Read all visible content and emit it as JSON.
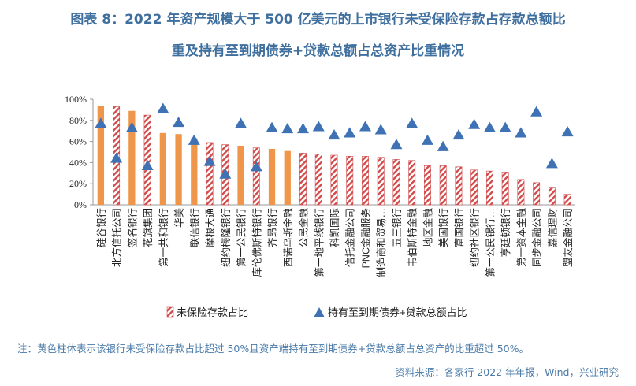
{
  "title_line1": "图表 8：2022 年资产规模大于 500 亿美元的上市银行未受保险存款占存款总额比",
  "title_line2": "重及持有至到期债券+贷款总额占总资产比重情况",
  "note": "注：黄色柱体表示该银行未受保险存款占比超过 50%且资产端持有至到期债券+贷款总额占总资产的比重超过 50%。",
  "source": "资料来源：各家行 2022 年年报，Wind，兴业研究",
  "colors": {
    "highlight_bar": "#f0964a",
    "hatch_stripe": "#d24a4a",
    "triangle": "#3e72b5",
    "axis": "#999999",
    "text": "#222222"
  },
  "chart_data": {
    "type": "bar",
    "ylim": [
      0,
      100
    ],
    "yticks": [
      "0%",
      "20%",
      "40%",
      "60%",
      "80%",
      "100%"
    ],
    "categories": [
      "硅谷银行",
      "北方信托公司",
      "签名银行",
      "花旗集团",
      "第一共和银行",
      "华美",
      "联信银行",
      "摩根大通",
      "纽约梅隆银行",
      "第一公民银行",
      "库伦佛斯特银行",
      "齐昂银行",
      "西诺乌斯金融",
      "公民金融",
      "第一地平线银行",
      "科凯国际",
      "信托金融公司",
      "PNC金融服务",
      "制造商和贸易…",
      "五三银行",
      "韦伯斯特金融",
      "地区金融",
      "美国银行",
      "富国银行",
      "纽约社区银行",
      "第一公民银行…",
      "亨廷顿银行",
      "第一资本金融",
      "同步金融公司",
      "嘉信理财",
      "盟友金融公司"
    ],
    "series": [
      {
        "name": "未保险存款占比",
        "values": [
          94,
          93,
          89,
          85,
          68,
          67,
          63,
          59,
          57,
          56,
          54,
          53,
          51,
          49,
          48,
          47,
          46,
          46,
          45,
          43,
          42,
          37,
          37,
          36,
          33,
          32,
          31,
          24,
          21,
          16,
          10
        ],
        "highlight": [
          true,
          false,
          true,
          false,
          true,
          true,
          true,
          false,
          false,
          true,
          false,
          true,
          true,
          false,
          false,
          false,
          false,
          false,
          false,
          false,
          false,
          false,
          false,
          false,
          false,
          false,
          false,
          false,
          false,
          false,
          false
        ]
      },
      {
        "name": "持有至到期债券+贷款总额占比",
        "marker": "triangle",
        "values": [
          77,
          44,
          73,
          37,
          91,
          78,
          61,
          41,
          29,
          77,
          36,
          73,
          72,
          72,
          74,
          66,
          68,
          74,
          71,
          57,
          77,
          61,
          55,
          66,
          76,
          73,
          73,
          68,
          88,
          39,
          69
        ]
      }
    ],
    "legend": {
      "position": "bottom",
      "labels": [
        "未保险存款占比",
        "持有至到期债券+贷款总额占比"
      ]
    }
  }
}
